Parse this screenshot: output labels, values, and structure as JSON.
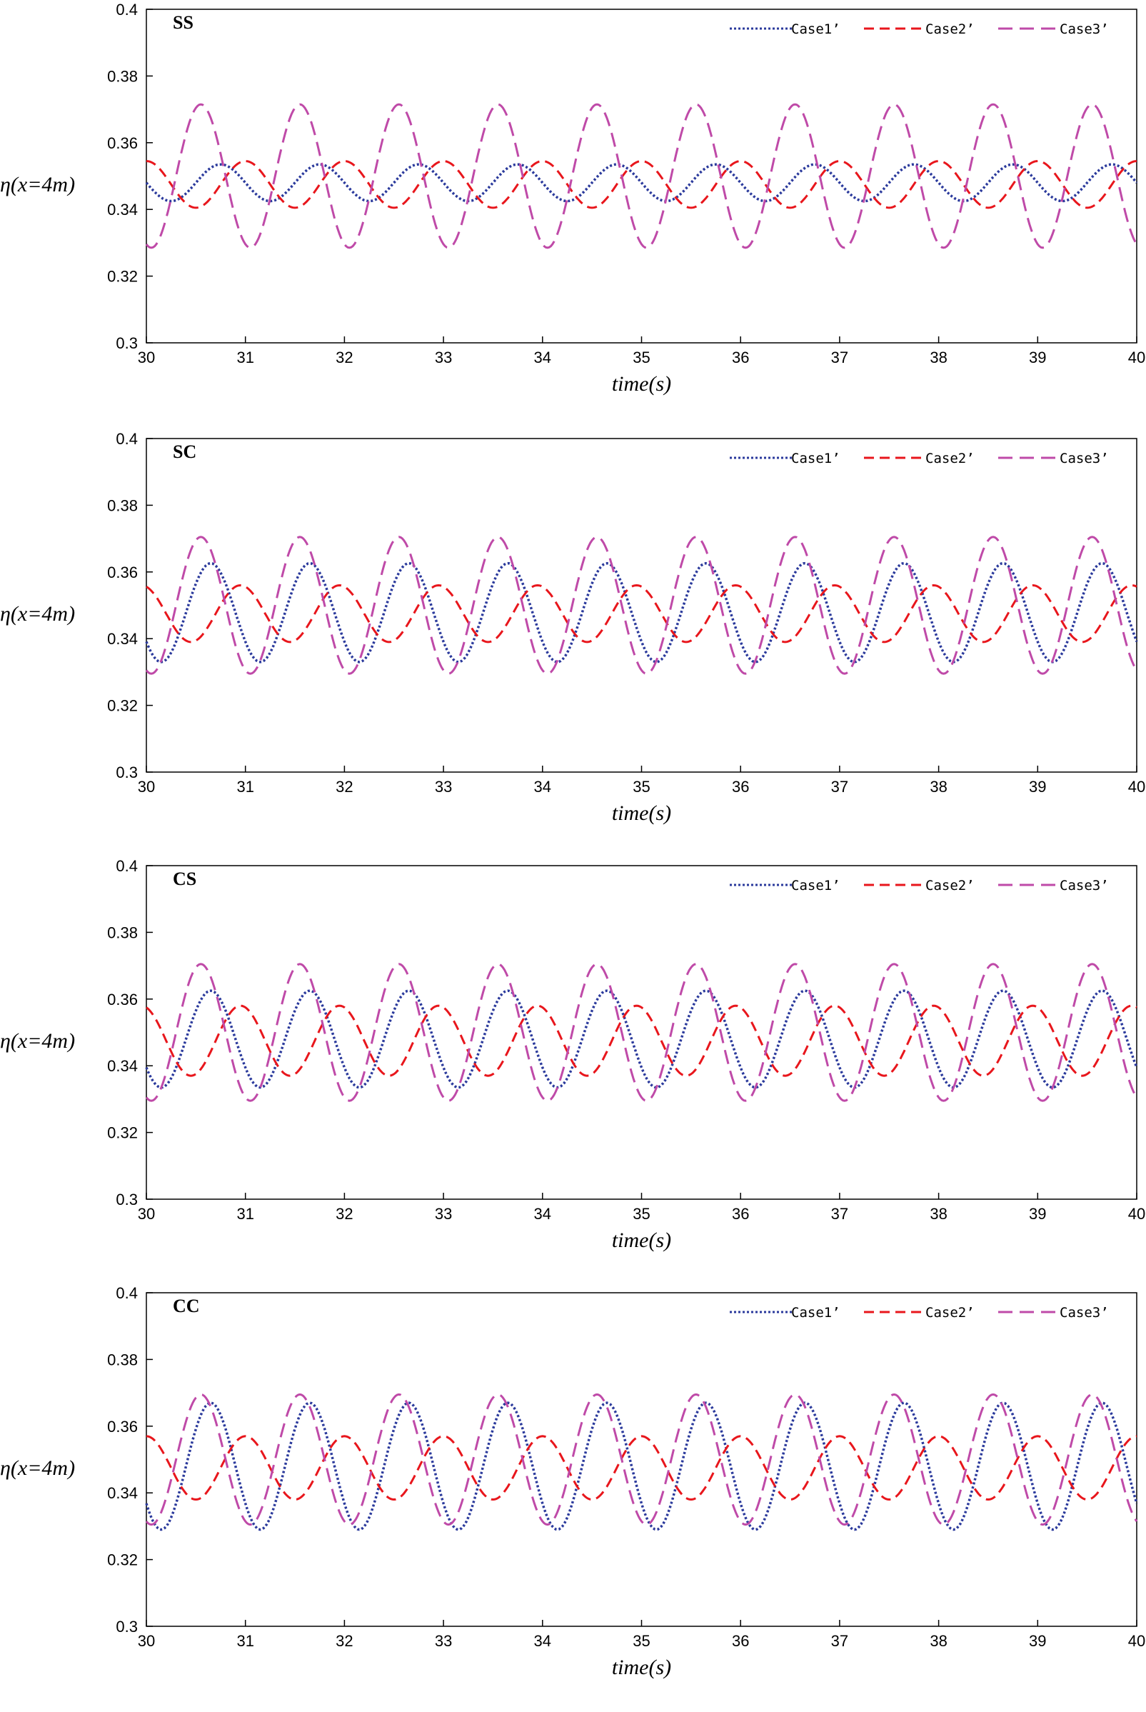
{
  "colors": {
    "case1": "#2b3a9c",
    "case2": "#e8161c",
    "case3": "#bf4aa8"
  },
  "chart_data": [
    {
      "type": "line",
      "title": "SS",
      "xlabel": "time(s)",
      "ylabel": "η(x=4m)",
      "xlim": [
        30,
        40
      ],
      "ylim": [
        0.3,
        0.4
      ],
      "xticks": [
        "30",
        "31",
        "32",
        "33",
        "34",
        "35",
        "36",
        "37",
        "38",
        "39",
        "40"
      ],
      "yticks": [
        "0.3",
        "0.32",
        "0.34",
        "0.36",
        "0.38",
        "0.4"
      ],
      "legend_position": "top-right",
      "series": [
        {
          "name": "Case1’",
          "mean": 0.348,
          "amp": 0.0055,
          "period": 1.0,
          "peak_t": 30.75
        },
        {
          "name": "Case2’",
          "mean": 0.3475,
          "amp": 0.007,
          "period": 1.0,
          "peak_t": 31.0
        },
        {
          "name": "Case3’",
          "mean": 0.35,
          "amp": 0.0215,
          "period": 1.0,
          "peak_t": 30.55
        }
      ]
    },
    {
      "type": "line",
      "title": "SC",
      "xlabel": "time(s)",
      "ylabel": "η(x=4m)",
      "xlim": [
        30,
        40
      ],
      "ylim": [
        0.3,
        0.4
      ],
      "xticks": [
        "30",
        "31",
        "32",
        "33",
        "34",
        "35",
        "36",
        "37",
        "38",
        "39",
        "40"
      ],
      "yticks": [
        "0.3",
        "0.32",
        "0.34",
        "0.36",
        "0.38",
        "0.4"
      ],
      "legend_position": "top-right",
      "series": [
        {
          "name": "Case1’",
          "mean": 0.3478,
          "amp": 0.0148,
          "period": 1.0,
          "peak_t": 30.65
        },
        {
          "name": "Case2’",
          "mean": 0.3475,
          "amp": 0.0085,
          "period": 1.0,
          "peak_t": 30.95
        },
        {
          "name": "Case3’",
          "mean": 0.35,
          "amp": 0.0205,
          "period": 1.0,
          "peak_t": 30.55
        }
      ]
    },
    {
      "type": "line",
      "title": "CS",
      "xlabel": "time(s)",
      "ylabel": "η(x=4m)",
      "xlim": [
        30,
        40
      ],
      "ylim": [
        0.3,
        0.4
      ],
      "xticks": [
        "30",
        "31",
        "32",
        "33",
        "34",
        "35",
        "36",
        "37",
        "38",
        "39",
        "40"
      ],
      "yticks": [
        "0.3",
        "0.32",
        "0.34",
        "0.36",
        "0.38",
        "0.4"
      ],
      "legend_position": "top-right",
      "series": [
        {
          "name": "Case1’",
          "mean": 0.348,
          "amp": 0.0145,
          "period": 1.0,
          "peak_t": 30.65
        },
        {
          "name": "Case2’",
          "mean": 0.3475,
          "amp": 0.0105,
          "period": 1.0,
          "peak_t": 30.95
        },
        {
          "name": "Case3’",
          "mean": 0.35,
          "amp": 0.0205,
          "period": 1.0,
          "peak_t": 30.55
        }
      ]
    },
    {
      "type": "line",
      "title": "CC",
      "xlabel": "time(s)",
      "ylabel": "η(x=4m)",
      "xlim": [
        30,
        40
      ],
      "ylim": [
        0.3,
        0.4
      ],
      "xticks": [
        "30",
        "31",
        "32",
        "33",
        "34",
        "35",
        "36",
        "37",
        "38",
        "39",
        "40"
      ],
      "yticks": [
        "0.3",
        "0.32",
        "0.34",
        "0.36",
        "0.38",
        "0.4"
      ],
      "legend_position": "top-right",
      "series": [
        {
          "name": "Case1’",
          "mean": 0.348,
          "amp": 0.019,
          "period": 1.0,
          "peak_t": 30.65
        },
        {
          "name": "Case2’",
          "mean": 0.3475,
          "amp": 0.0095,
          "period": 1.0,
          "peak_t": 31.0
        },
        {
          "name": "Case3’",
          "mean": 0.35,
          "amp": 0.0195,
          "period": 1.0,
          "peak_t": 30.55
        }
      ]
    }
  ]
}
